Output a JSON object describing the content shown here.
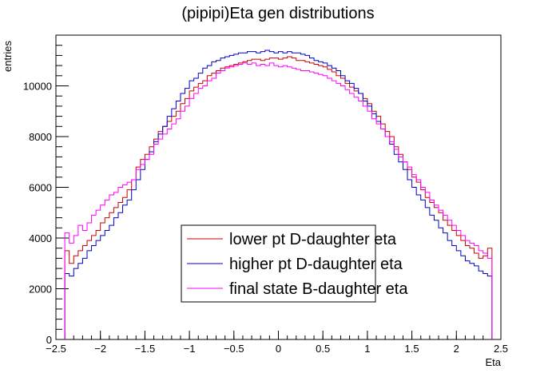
{
  "chart_data": {
    "type": "step-histogram",
    "title": "(pipipi)Eta gen distributions",
    "xlabel": "Eta",
    "ylabel": "entries",
    "xlim": [
      -2.5,
      2.5
    ],
    "ylim": [
      0,
      12000
    ],
    "x_ticks": [
      -2.5,
      -2,
      -1.5,
      -1,
      -0.5,
      0,
      0.5,
      1,
      1.5,
      2,
      2.5
    ],
    "x_tick_labels": [
      "−2.5",
      "−2",
      "−1.5",
      "−1",
      "−0.5",
      "0",
      "0.5",
      "1",
      "1.5",
      "2",
      "2.5"
    ],
    "y_ticks": [
      0,
      2000,
      4000,
      6000,
      8000,
      10000
    ],
    "y_tick_labels": [
      "0",
      "2000",
      "4000",
      "6000",
      "8000",
      "10000"
    ],
    "bin_edges_range": [
      -2.4,
      2.4
    ],
    "legend_position": "bottom-center",
    "grid": false,
    "series": [
      {
        "name": "lower pt D-daughter eta",
        "color": "#cc0000",
        "values": [
          3500,
          3000,
          3300,
          3500,
          3700,
          3900,
          4100,
          4300,
          4600,
          4800,
          5000,
          5200,
          5400,
          5600,
          5900,
          6300,
          6800,
          7100,
          7300,
          7600,
          7900,
          8200,
          8400,
          8600,
          8800,
          9000,
          9300,
          9500,
          9800,
          9950,
          10100,
          10200,
          10400,
          10500,
          10600,
          10700,
          10750,
          10800,
          10850,
          10900,
          10950,
          11000,
          11050,
          11050,
          11000,
          11050,
          11100,
          11100,
          11050,
          11100,
          11150,
          11100,
          11000,
          11000,
          10950,
          10900,
          10850,
          10800,
          10750,
          10650,
          10550,
          10400,
          10300,
          10100,
          9950,
          9800,
          9700,
          9500,
          9300,
          9000,
          8800,
          8500,
          8200,
          8000,
          7600,
          7300,
          7000,
          6700,
          6400,
          6200,
          5900,
          5600,
          5400,
          5200,
          5000,
          4700,
          4500,
          4300,
          4100,
          3900,
          3700,
          3600,
          3400,
          3200,
          3300,
          3600
        ]
      },
      {
        "name": "higher pt D-daughter eta",
        "color": "#0000cc",
        "values": [
          2600,
          2500,
          2800,
          3000,
          3200,
          3500,
          3700,
          3900,
          4100,
          4300,
          4500,
          4800,
          5000,
          5300,
          5500,
          5900,
          6300,
          6700,
          7100,
          7400,
          7800,
          8100,
          8400,
          8800,
          9100,
          9400,
          9700,
          9900,
          10200,
          10300,
          10500,
          10700,
          10800,
          10950,
          11000,
          11100,
          11150,
          11200,
          11250,
          11300,
          11300,
          11350,
          11350,
          11300,
          11350,
          11400,
          11350,
          11300,
          11350,
          11300,
          11350,
          11300,
          11300,
          11250,
          11200,
          11100,
          11000,
          10950,
          10900,
          10800,
          10700,
          10600,
          10400,
          10200,
          10100,
          9900,
          9700,
          9400,
          9200,
          8900,
          8600,
          8300,
          8000,
          7700,
          7300,
          7000,
          6700,
          6300,
          6000,
          5700,
          5500,
          5200,
          4900,
          4700,
          4400,
          4200,
          3900,
          3700,
          3500,
          3300,
          3100,
          3000,
          2900,
          2700,
          2600,
          2500
        ]
      },
      {
        "name": "final state B-daughter eta",
        "color": "#ff00ff",
        "values": [
          4200,
          3800,
          4100,
          4500,
          4300,
          4600,
          4900,
          5100,
          5300,
          5500,
          5700,
          5800,
          6000,
          6100,
          6200,
          6300,
          6700,
          6900,
          7100,
          7300,
          7700,
          7900,
          8100,
          8300,
          8500,
          8700,
          9000,
          9200,
          9500,
          9700,
          9900,
          10000,
          10200,
          10300,
          10500,
          10600,
          10700,
          10750,
          10800,
          10850,
          10900,
          10850,
          10900,
          10800,
          10850,
          10800,
          10900,
          10800,
          10750,
          10800,
          10750,
          10700,
          10650,
          10600,
          10600,
          10550,
          10500,
          10450,
          10400,
          10300,
          10200,
          10100,
          10000,
          9850,
          9700,
          9550,
          9400,
          9200,
          9000,
          8700,
          8500,
          8300,
          8000,
          7800,
          7500,
          7200,
          7000,
          6800,
          6500,
          6300,
          6000,
          5800,
          5500,
          5300,
          5100,
          4900,
          4700,
          4500,
          4300,
          4100,
          3900,
          3800,
          3700,
          3500,
          3400,
          3200
        ]
      }
    ]
  }
}
